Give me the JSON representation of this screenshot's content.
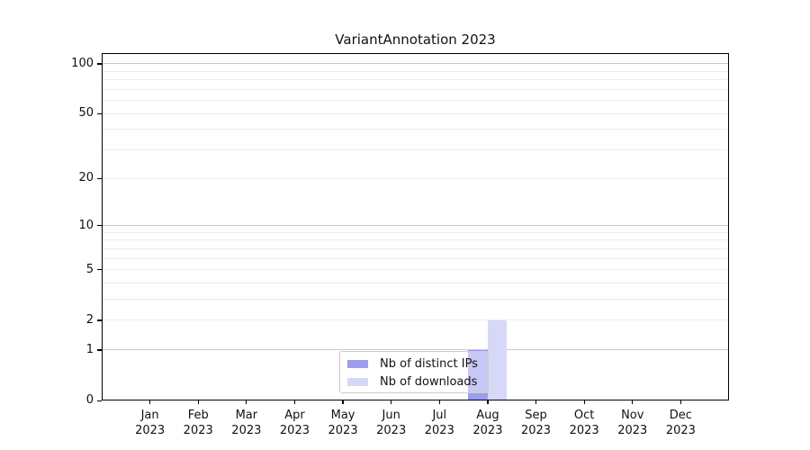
{
  "chart_data": {
    "type": "bar",
    "title": "VariantAnnotation 2023",
    "categories": [
      "Jan",
      "Feb",
      "Mar",
      "Apr",
      "May",
      "Jun",
      "Jul",
      "Aug",
      "Sep",
      "Oct",
      "Nov",
      "Dec"
    ],
    "category_year": "2023",
    "series": [
      {
        "name": "Nb of distinct IPs",
        "color": "#9c9cee",
        "values": [
          0,
          0,
          0,
          0,
          0,
          0,
          0,
          1,
          0,
          0,
          0,
          0
        ]
      },
      {
        "name": "Nb of downloads",
        "color": "#d7d7f7",
        "values": [
          0,
          0,
          0,
          0,
          0,
          0,
          0,
          2,
          0,
          0,
          0,
          0
        ]
      }
    ],
    "xlabel": "",
    "ylabel": "",
    "y_scale": "log1p",
    "ylim": [
      0,
      116
    ],
    "y_ticks": [
      0,
      1,
      2,
      5,
      10,
      20,
      50,
      100
    ],
    "grid": "horizontal",
    "grid_major_values": [
      1,
      10,
      100
    ],
    "grid_minor_values": [
      2,
      3,
      4,
      5,
      6,
      7,
      8,
      9,
      20,
      30,
      40,
      50,
      60,
      70,
      80,
      90
    ],
    "legend_position": "lower center"
  },
  "colors": {
    "grid_major": "#c9c9c9",
    "grid_minor": "#ececec",
    "axis": "#000000",
    "legend_border": "#cccccc",
    "background": "#ffffff",
    "text": "#111111"
  }
}
